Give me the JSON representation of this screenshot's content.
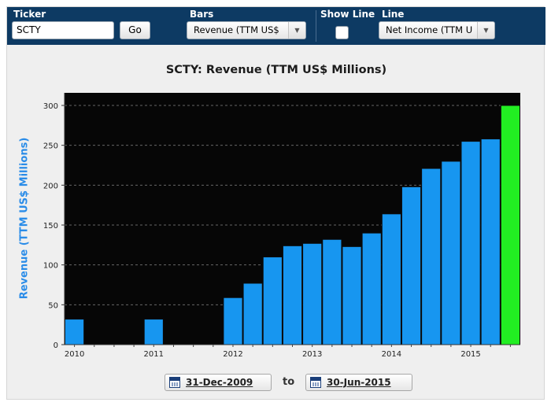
{
  "toolbar": {
    "ticker_label": "Ticker",
    "ticker_value": "SCTY",
    "go_label": "Go",
    "bars_label": "Bars",
    "bars_selected": "Revenue (TTM US$",
    "show_line_label": "Show Line",
    "show_line_checked": false,
    "line_label": "Line",
    "line_selected": "Net Income (TTM U"
  },
  "range": {
    "start": "31-Dec-2009",
    "to_label": "to",
    "end": "30-Jun-2015"
  },
  "chart_data": {
    "type": "bar",
    "title": "SCTY: Revenue (TTM US$ Millions)",
    "ylabel": "Revenue (TTM US$ Millions)",
    "xlabel": "",
    "ylim": [
      0,
      300
    ],
    "yticks": [
      0,
      50,
      100,
      150,
      200,
      250,
      300
    ],
    "xtick_labels": [
      "2010",
      "2011",
      "2012",
      "2013",
      "2014",
      "2015"
    ],
    "grid": true,
    "legend": "none",
    "colors": {
      "background": "#060606",
      "bars": "#1796f0",
      "highlight": "#22ee22",
      "grid": "#666666"
    },
    "categories": [
      "Dec-2009",
      "Mar-2010",
      "Jun-2010",
      "Sep-2010",
      "Dec-2010",
      "Mar-2011",
      "Jun-2011",
      "Sep-2011",
      "Dec-2011",
      "Mar-2012",
      "Jun-2012",
      "Sep-2012",
      "Dec-2012",
      "Mar-2013",
      "Jun-2013",
      "Sep-2013",
      "Dec-2013",
      "Mar-2014",
      "Jun-2014",
      "Sep-2014",
      "Dec-2014",
      "Mar-2015",
      "Jun-2015"
    ],
    "values": [
      32,
      null,
      null,
      null,
      32,
      null,
      null,
      null,
      59,
      77,
      110,
      124,
      127,
      132,
      123,
      140,
      164,
      198,
      221,
      230,
      255,
      258,
      300
    ],
    "highlight_index": 22
  }
}
